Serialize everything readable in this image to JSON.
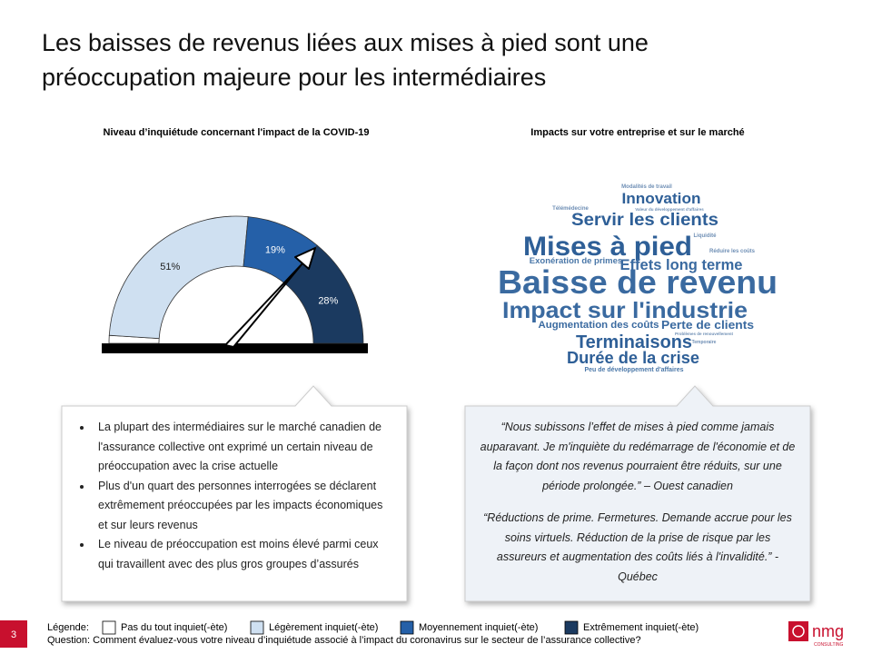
{
  "title": "Les baisses de revenus liées aux mises à pied sont une préoccupation majeure pour les intermédiaires",
  "chart_data": {
    "type": "gauge",
    "title": "Niveau d’inquiétude concernant l'impact de la COVID-19",
    "categories": [
      "Pas du tout inquiet(-ète)",
      "Légèrement inquiet(-ète)",
      "Moyennement inquiet(-ète)",
      "Extrêmement inquiet(-ète)"
    ],
    "values": [
      2,
      51,
      19,
      28
    ],
    "value_labels": [
      null,
      "51%",
      "19%",
      "28%"
    ],
    "colors": [
      "#ffffff",
      "#cfe0f1",
      "#2560a8",
      "#1b3a60"
    ],
    "legend_title": "Légende:"
  },
  "word_cloud": {
    "title": "Impacts sur votre entreprise et sur le marché",
    "words": [
      "Modalités de travail",
      "Innovation",
      "Valeur du développement d'affaires",
      "Télémédecine",
      "Servir les clients",
      "Liquidité",
      "Mises à pied",
      "Réduire les coûts",
      "Exonération de primes",
      "Effets long terme",
      "Baisse de revenu",
      "Impact sur l'industrie",
      "Augmentation des coûts",
      "Perte de clients",
      "Problèmes de renouvellement",
      "Terminaisons",
      "Temporaire",
      "Durée de la crise",
      "Peu de développement d'affaires"
    ]
  },
  "bullets": [
    "La plupart des intermédiaires sur le marché canadien de l'assurance collective ont exprimé un certain niveau de préoccupation avec la crise actuelle",
    "Plus d'un quart des personnes interrogées se déclarent extrêmement préoccupées par les impacts économiques et sur leurs revenus",
    "Le niveau de préoccupation est moins élevé parmi ceux qui travaillent avec des plus gros groupes d’assurés"
  ],
  "quotes": [
    "“Nous subissons l’effet de mises à pied comme jamais auparavant. Je m'inquiète du redémarrage de l'économie et de la façon dont nos revenus pourraient être réduits, sur une période prolongée.” – Ouest canadien",
    "“Réductions de prime. Fermetures. Demande accrue pour les soins virtuels. Réduction de la prise de risque par les assureurs et augmentation des coûts liés à l'invalidité.” - Québec"
  ],
  "question": "Question: Comment évaluez-vous votre niveau d’inquiétude associé à l’impact du coronavirus sur le secteur de l’assurance collective?",
  "page_number": "3",
  "logo": {
    "name": "nmg",
    "tagline": "CONSULTING"
  }
}
